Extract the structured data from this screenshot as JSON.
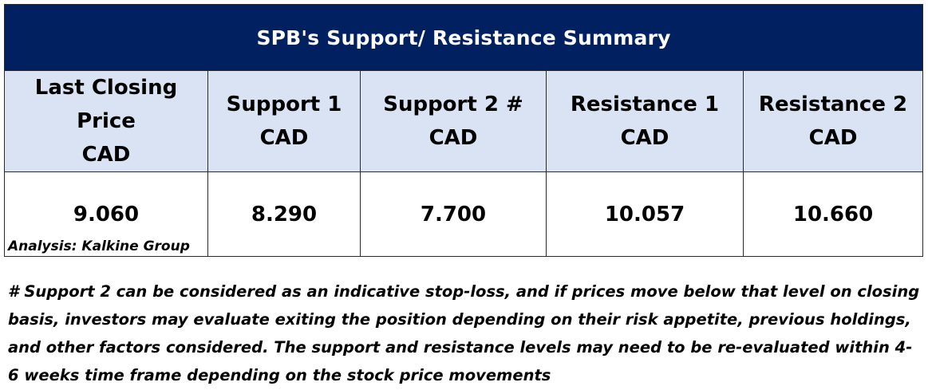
{
  "title": "SPB's Support/  Resistance Summary",
  "columns": [
    {
      "line1": "Last Closing Price",
      "line2": "CAD"
    },
    {
      "line1": "Support 1",
      "line2": "CAD"
    },
    {
      "line1": "Support 2 #",
      "line2": "CAD"
    },
    {
      "line1": "Resistance 1",
      "line2": "CAD"
    },
    {
      "line1": "Resistance 2",
      "line2": "CAD"
    }
  ],
  "values": [
    "9.060",
    "8.290",
    "7.700",
    "10.057",
    "10.660"
  ],
  "analysis": "Analysis: Kalkine Group",
  "footnote": "# Support 2 can be considered as an indicative stop-loss, and if prices move below that level on closing basis, investors may evaluate exiting the position depending on their risk appetite, previous holdings, and other factors considered. The support and resistance levels may need to be re-evaluated within 4-6 weeks time frame depending on the stock price movements",
  "colors": {
    "title_bg": "#002060",
    "header_bg": "#DAE3F3",
    "title_text": "#FFFFFF"
  }
}
